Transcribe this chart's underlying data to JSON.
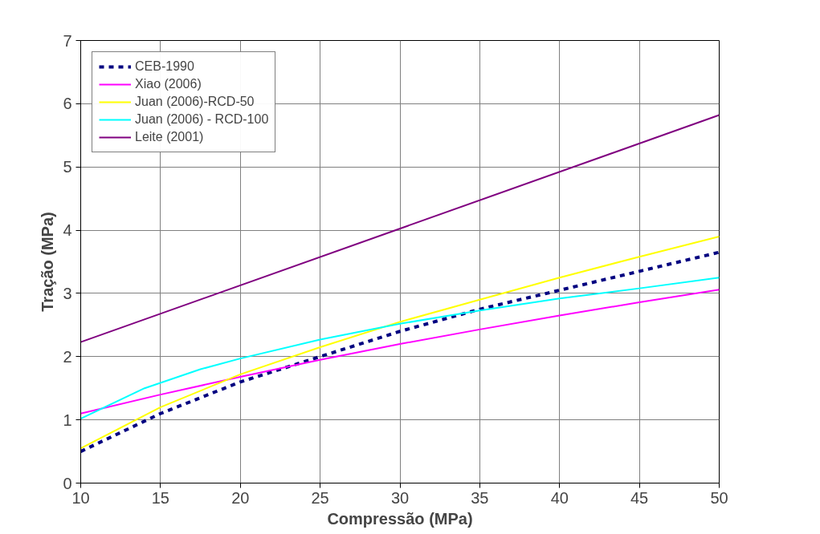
{
  "chart_data": {
    "type": "line",
    "xlabel": "Compressão (MPa)",
    "ylabel": "Tração (MPa)",
    "xlim": [
      10,
      50
    ],
    "xticks": [
      10,
      15,
      20,
      25,
      30,
      35,
      40,
      45,
      50
    ],
    "ylim": [
      0,
      7
    ],
    "yticks": [
      0,
      1,
      2,
      3,
      4,
      5,
      6,
      7
    ],
    "grid": true,
    "legend": "top left",
    "marker": "none",
    "series": [
      {
        "name": "CEB-1990",
        "color": "#000080",
        "line_style": "dashed",
        "x": [
          10,
          15,
          20,
          25,
          30,
          35,
          40,
          45,
          50
        ],
        "values": [
          0.5,
          1.1,
          1.6,
          2.0,
          2.4,
          2.75,
          3.05,
          3.35,
          3.65
        ]
      },
      {
        "name": "Xiao (2006)",
        "color": "#ff00ff",
        "x": [
          10,
          15,
          20,
          25,
          30,
          35,
          40,
          45,
          50
        ],
        "values": [
          1.1,
          1.4,
          1.68,
          1.95,
          2.2,
          2.43,
          2.65,
          2.86,
          3.06
        ]
      },
      {
        "name": "Juan (2006)-RCD-50",
        "color": "#ffff00",
        "x": [
          10,
          15,
          20,
          25,
          30,
          35,
          40,
          45,
          50
        ],
        "values": [
          0.55,
          1.2,
          1.72,
          2.15,
          2.55,
          2.9,
          3.25,
          3.58,
          3.9
        ]
      },
      {
        "name": "Juan (2006) - RCD-100",
        "color": "#00ffff",
        "x": [
          10,
          14,
          17.5,
          20,
          25,
          30,
          35,
          40,
          45,
          50
        ],
        "values": [
          1.02,
          1.5,
          1.8,
          1.97,
          2.27,
          2.52,
          2.73,
          2.92,
          3.08,
          3.25
        ]
      },
      {
        "name": "Leite (2001)",
        "color": "#800080",
        "x": [
          10,
          50
        ],
        "values": [
          2.23,
          5.82
        ]
      }
    ]
  }
}
